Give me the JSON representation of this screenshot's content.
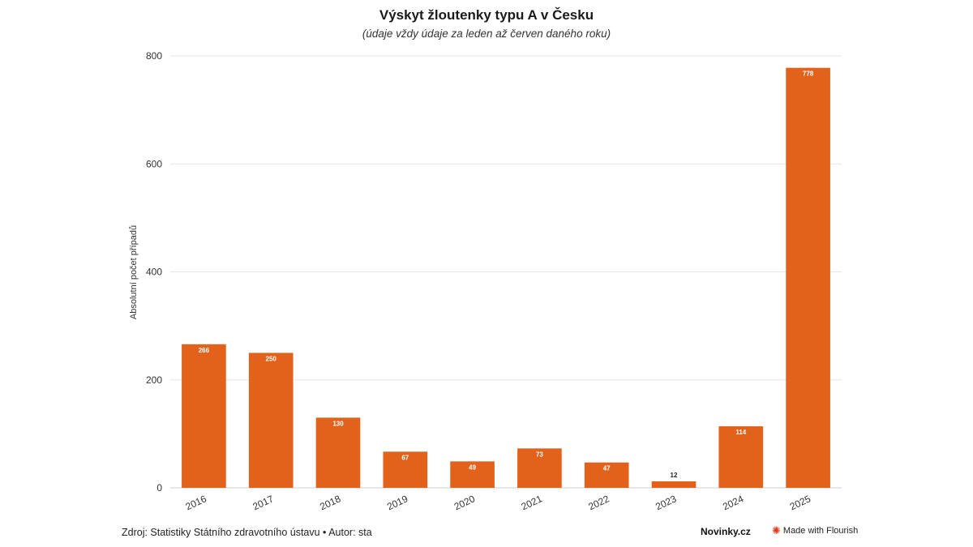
{
  "chart_data": {
    "type": "bar",
    "title": "Výskyt žloutenky typu A v Česku",
    "subtitle": "(údaje vždy údaje za leden až červen daného roku)",
    "ylabel": "Absolutní počet případů",
    "xlabel": "",
    "categories": [
      "2016",
      "2017",
      "2018",
      "2019",
      "2020",
      "2021",
      "2022",
      "2023",
      "2024",
      "2025"
    ],
    "values": [
      266,
      250,
      130,
      67,
      49,
      73,
      47,
      12,
      114,
      778
    ],
    "value_labels": [
      "266",
      "250",
      "130",
      "67",
      "49",
      "73",
      "47",
      "12",
      "114",
      "778"
    ],
    "ylim": [
      0,
      800
    ],
    "yticks": [
      "0",
      "200",
      "400",
      "600",
      "800"
    ],
    "grid": true,
    "bar_color": "#e2621c"
  },
  "footer": {
    "source": "Zdroj: Statistiky Státního zdravotního ústavu • Autor: sta",
    "brand": "Novinky.cz",
    "flourish": "Made with Flourish"
  }
}
